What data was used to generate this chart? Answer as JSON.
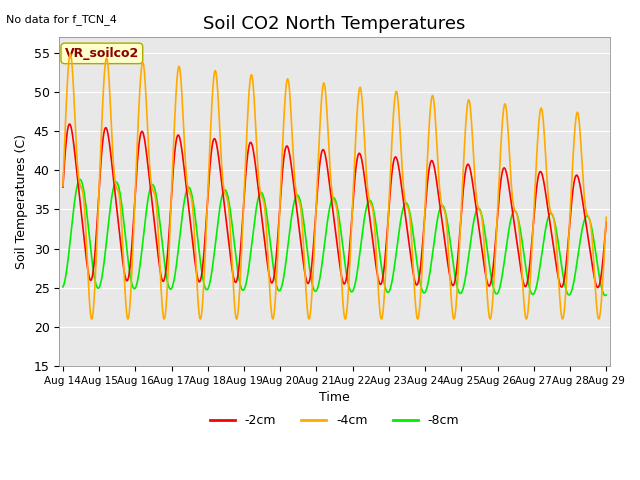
{
  "title": "Soil CO2 North Temperatures",
  "xlabel": "Time",
  "ylabel": "Soil Temperatures (C)",
  "top_left_text": "No data for f_TCN_4",
  "annotation_text": "VR_soilco2",
  "ylim": [
    15,
    57
  ],
  "yticks": [
    15,
    20,
    25,
    30,
    35,
    40,
    45,
    50,
    55
  ],
  "xtick_labels": [
    "Aug 14",
    "Aug 15",
    "Aug 16",
    "Aug 17",
    "Aug 18",
    "Aug 19",
    "Aug 20",
    "Aug 21",
    "Aug 22",
    "Aug 23",
    "Aug 24",
    "Aug 25",
    "Aug 26",
    "Aug 27",
    "Aug 28",
    "Aug 29"
  ],
  "color_2cm": "#ff0000",
  "color_4cm": "#ffaa00",
  "color_8cm": "#00ee00",
  "legend_labels": [
    "-2cm",
    "-4cm",
    "-8cm"
  ],
  "bg_color": "#e8e8e8",
  "fig_bg": "#ffffff",
  "start_day": 14,
  "end_day": 29,
  "num_points": 2000,
  "period_days": 1.0
}
